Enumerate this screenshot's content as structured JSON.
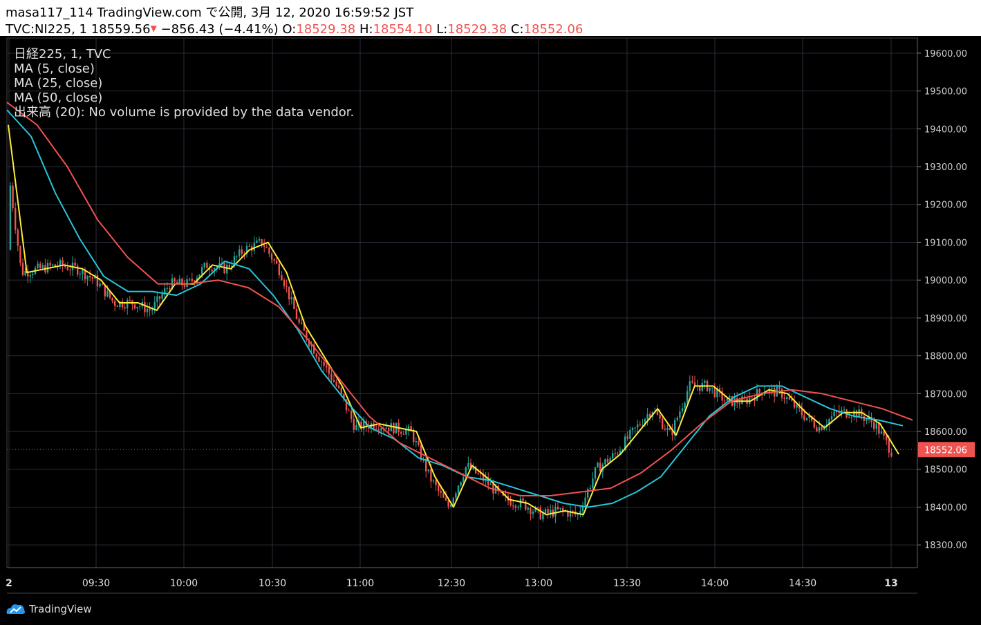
{
  "header": {
    "line1": "masa117_114 TradingView.com で公開, 3月 12, 2020 16:59:52 JST",
    "symbol": "TVC:NI225, 1",
    "last": "18559.56",
    "down_arrow": "▼",
    "change": "−856.43 (−4.41%)",
    "o_label": "O:",
    "o": "18529.38",
    "h_label": "H:",
    "h": "18554.10",
    "l_label": "L:",
    "l": "18529.38",
    "c_label": "C:",
    "c": "18552.06"
  },
  "legend": [
    "日経225, 1, TVC",
    "MA (5, close)",
    "MA (25, close)",
    "MA (50, close)",
    "出来高 (20): No volume is provided by the data vendor."
  ],
  "brand": "TradingView",
  "colors": {
    "background": "#000000",
    "grid": "#2a2e39",
    "up": "#26a69a",
    "down": "#ef5350",
    "ma5": "#ffeb3b",
    "ma25": "#26c6da",
    "ma50": "#ef5350",
    "price_line": "#ef5350"
  },
  "chart_data": {
    "type": "line",
    "title": "日経225, 1, TVC",
    "ylim": [
      18240,
      19640
    ],
    "y_ticks": [
      "19600.00",
      "19500.00",
      "19400.00",
      "19300.00",
      "19200.00",
      "19100.00",
      "19000.00",
      "18900.00",
      "18800.00",
      "18700.00",
      "18600.00",
      "18500.00",
      "18400.00",
      "18300.00"
    ],
    "x_ticks": [
      "2",
      "09:30",
      "10:00",
      "10:30",
      "11:00",
      "12:30",
      "13:00",
      "13:30",
      "14:00",
      "14:30",
      "13"
    ],
    "current_price": 18552.06,
    "current_price_label": "18552.06",
    "series": [
      {
        "name": "MA (5, close)",
        "values": [
          19410,
          19020,
          19030,
          19040,
          19030,
          19000,
          18940,
          18940,
          18920,
          18990,
          18990,
          19040,
          19030,
          19080,
          19100,
          19020,
          18880,
          18800,
          18720,
          18610,
          18620,
          18610,
          18600,
          18480,
          18400,
          18510,
          18470,
          18420,
          18410,
          18380,
          18390,
          18380,
          18500,
          18540,
          18600,
          18660,
          18590,
          18720,
          18720,
          18680,
          18680,
          18710,
          18700,
          18650,
          18610,
          18650,
          18650,
          18620,
          18540
        ]
      },
      {
        "name": "MA (25, close)",
        "values": [
          19450,
          19380,
          19230,
          19110,
          19010,
          18970,
          18970,
          18960,
          18990,
          19050,
          19030,
          18960,
          18870,
          18760,
          18680,
          18610,
          18580,
          18530,
          18510,
          18480,
          18470,
          18450,
          18430,
          18410,
          18400,
          18410,
          18440,
          18480,
          18560,
          18640,
          18690,
          18720,
          18720,
          18690,
          18660,
          18640,
          18630,
          18615
        ]
      },
      {
        "name": "MA (50, close)",
        "values": [
          19470,
          19410,
          19300,
          19160,
          19060,
          18990,
          18990,
          19000,
          18980,
          18930,
          18840,
          18740,
          18640,
          18570,
          18530,
          18490,
          18450,
          18430,
          18430,
          18440,
          18450,
          18490,
          18550,
          18620,
          18680,
          18700,
          18710,
          18700,
          18680,
          18660,
          18630
        ]
      }
    ]
  }
}
